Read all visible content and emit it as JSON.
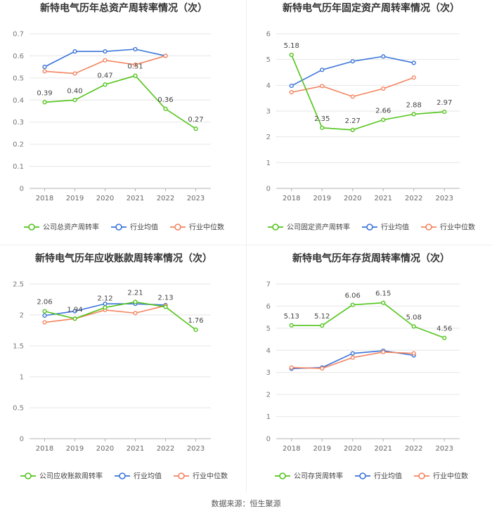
{
  "source_text": "数据来源：恒生聚源",
  "colors": {
    "company": "#52c41a",
    "avg": "#3a74d9",
    "median": "#f4845f",
    "grid": "#e6e6e6",
    "axis": "#999999",
    "text": "#555555"
  },
  "chart_data": [
    {
      "type": "line",
      "title": "新特电气历年总资产周转率情况（次）",
      "categories": [
        "2018",
        "2019",
        "2020",
        "2021",
        "2022",
        "2023"
      ],
      "ylim": [
        0,
        0.7
      ],
      "yticks": [
        "0",
        "0.1",
        "0.2",
        "0.3",
        "0.4",
        "0.5",
        "0.6",
        "0.7"
      ],
      "series": [
        {
          "name": "公司总资产周转率",
          "key": "company",
          "values": [
            0.39,
            0.4,
            0.47,
            0.51,
            0.36,
            0.27
          ],
          "labels": [
            "0.39",
            "0.40",
            "0.47",
            "0.51",
            "0.36",
            "0.27"
          ]
        },
        {
          "name": "行业均值",
          "key": "avg",
          "values": [
            0.55,
            0.62,
            0.62,
            0.63,
            0.6,
            null
          ]
        },
        {
          "name": "行业中位数",
          "key": "median",
          "values": [
            0.53,
            0.52,
            0.58,
            0.56,
            0.6,
            null
          ]
        }
      ]
    },
    {
      "type": "line",
      "title": "新特电气历年固定资产周转率情况（次）",
      "categories": [
        "2018",
        "2019",
        "2020",
        "2021",
        "2022",
        "2023"
      ],
      "ylim": [
        0,
        6
      ],
      "yticks": [
        "0",
        "1",
        "2",
        "3",
        "4",
        "5",
        "6"
      ],
      "series": [
        {
          "name": "公司固定资产周转率",
          "key": "company",
          "values": [
            5.18,
            2.35,
            2.27,
            2.66,
            2.88,
            2.97
          ],
          "labels": [
            "5.18",
            "2.35",
            "2.27",
            "2.66",
            "2.88",
            "2.97"
          ]
        },
        {
          "name": "行业均值",
          "key": "avg",
          "values": [
            3.98,
            4.6,
            4.93,
            5.12,
            4.87,
            null
          ]
        },
        {
          "name": "行业中位数",
          "key": "median",
          "values": [
            3.73,
            3.97,
            3.56,
            3.87,
            4.3,
            null
          ]
        }
      ]
    },
    {
      "type": "line",
      "title": "新特电气历年应收账款周转率情况（次）",
      "categories": [
        "2018",
        "2019",
        "2020",
        "2021",
        "2022",
        "2023"
      ],
      "ylim": [
        0,
        2.5
      ],
      "yticks": [
        "0",
        "0.5",
        "1",
        "1.5",
        "2",
        "2.5"
      ],
      "series": [
        {
          "name": "公司应收账款周转率",
          "key": "company",
          "values": [
            2.06,
            1.94,
            2.12,
            2.21,
            2.13,
            1.76
          ],
          "labels": [
            "2.06",
            "1.94",
            "2.12",
            "2.21",
            "2.13",
            "1.76"
          ]
        },
        {
          "name": "行业均值",
          "key": "avg",
          "values": [
            1.99,
            2.06,
            2.18,
            2.18,
            2.16,
            null
          ]
        },
        {
          "name": "行业中位数",
          "key": "median",
          "values": [
            1.88,
            1.94,
            2.08,
            2.03,
            2.15,
            null
          ]
        }
      ]
    },
    {
      "type": "line",
      "title": "新特电气历年存货周转率情况（次）",
      "categories": [
        "2018",
        "2019",
        "2020",
        "2021",
        "2022",
        "2023"
      ],
      "ylim": [
        0,
        7
      ],
      "yticks": [
        "0",
        "1",
        "2",
        "3",
        "4",
        "5",
        "6",
        "7"
      ],
      "series": [
        {
          "name": "公司存货周转率",
          "key": "company",
          "values": [
            5.13,
            5.12,
            6.06,
            6.15,
            5.08,
            4.56
          ],
          "labels": [
            "5.13",
            "5.12",
            "6.06",
            "6.15",
            "5.08",
            "4.56"
          ]
        },
        {
          "name": "行业均值",
          "key": "avg",
          "values": [
            3.17,
            3.22,
            3.86,
            3.98,
            3.77,
            null
          ]
        },
        {
          "name": "行业中位数",
          "key": "median",
          "values": [
            3.22,
            3.18,
            3.67,
            3.92,
            3.86,
            null
          ]
        }
      ]
    }
  ]
}
